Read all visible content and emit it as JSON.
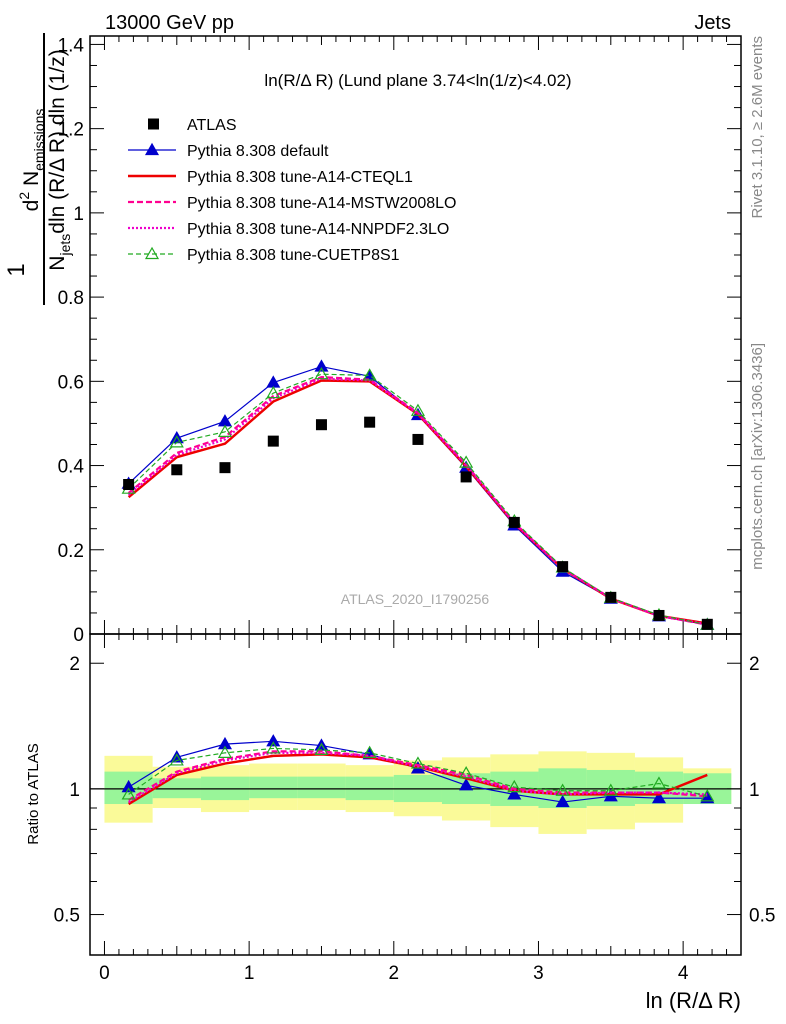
{
  "header": {
    "left": "13000 GeV pp",
    "right": "Jets"
  },
  "side_labels": {
    "rivet": "Rivet 3.1.10, ≥ 2.6M events",
    "mcplots": "mcplots.cern.ch [arXiv:1306.3436]"
  },
  "watermark": "ATLAS_2020_I1790256",
  "colors": {
    "ATLAS": "#000000",
    "default": "#0000cc",
    "CTEQL1": "#ee0000",
    "MSTW": "#ff0090",
    "NNPDF": "#ee00cc",
    "CUETP8S1": "#22aa22",
    "band_inner": "#99f599",
    "band_outer": "#fafa99"
  },
  "chart_data": [
    {
      "type": "scatter",
      "title": "ln(R/Δ R) (Lund plane 3.74<ln(1/z)<4.02)",
      "xlabel": "ln (R/Δ R)",
      "ylabel_parts": {
        "num_a": "d",
        "num_sup": "2",
        "num_b": " N",
        "num_sub": "emissions",
        "one": "1",
        "den_a": "N",
        "den_sub": "jets",
        "den_b": "dln (R/Δ R) dln (1/z)"
      },
      "xlim": [
        -0.1,
        4.4
      ],
      "ylim": [
        0,
        1.42
      ],
      "yticks": [
        0,
        0.2,
        0.4,
        0.6,
        0.8,
        1,
        1.2,
        1.4
      ],
      "ytick_labels": [
        "0",
        "0.2",
        "0.4",
        "0.6",
        "0.8",
        "1",
        "1.2",
        "1.4"
      ],
      "legend_position": "top-left",
      "x": [
        0.167,
        0.5,
        0.833,
        1.167,
        1.5,
        1.833,
        2.167,
        2.5,
        2.833,
        3.167,
        3.5,
        3.833,
        4.167
      ],
      "series": [
        {
          "name": "ATLAS",
          "style": "data",
          "values": [
            0.355,
            0.39,
            0.395,
            0.458,
            0.497,
            0.503,
            0.462,
            0.373,
            0.265,
            0.16,
            0.087,
            0.044,
            0.023
          ]
        },
        {
          "name": "Pythia 8.308 default",
          "style": "blue",
          "values": [
            0.357,
            0.465,
            0.505,
            0.597,
            0.635,
            0.612,
            0.52,
            0.395,
            0.258,
            0.148,
            0.084,
            0.042,
            0.022
          ]
        },
        {
          "name": "Pythia 8.308 tune-A14-CTEQL1",
          "style": "red",
          "values": [
            0.325,
            0.42,
            0.452,
            0.552,
            0.602,
            0.6,
            0.522,
            0.398,
            0.262,
            0.155,
            0.084,
            0.043,
            0.025
          ]
        },
        {
          "name": "Pythia 8.308 tune-A14-MSTW2008LO",
          "style": "magenta",
          "values": [
            0.335,
            0.43,
            0.468,
            0.565,
            0.61,
            0.604,
            0.525,
            0.402,
            0.264,
            0.156,
            0.085,
            0.043,
            0.022
          ]
        },
        {
          "name": "Pythia 8.308 tune-A14-NNPDF2.3LO",
          "style": "pink",
          "values": [
            0.33,
            0.425,
            0.462,
            0.56,
            0.606,
            0.602,
            0.523,
            0.4,
            0.263,
            0.155,
            0.085,
            0.043,
            0.023
          ]
        },
        {
          "name": "Pythia 8.308 tune-CUETP8S1",
          "style": "green",
          "values": [
            0.345,
            0.455,
            0.48,
            0.572,
            0.617,
            0.614,
            0.53,
            0.407,
            0.268,
            0.158,
            0.086,
            0.045,
            0.022
          ]
        }
      ]
    },
    {
      "type": "line",
      "ylabel": "Ratio to ATLAS",
      "xlabel": "ln (R/Δ R)",
      "ylim": [
        0.4,
        2.35
      ],
      "log_y": true,
      "yticks": [
        0.5,
        1,
        2
      ],
      "ytick_labels": [
        "0.5",
        "1",
        "2"
      ],
      "xticks": [
        0,
        1,
        2,
        3,
        4
      ],
      "xtick_labels": [
        "0",
        "1",
        "2",
        "3",
        "4"
      ],
      "bins": [
        [
          0,
          0.333
        ],
        [
          0.333,
          0.667
        ],
        [
          0.667,
          1.0
        ],
        [
          1.0,
          1.333
        ],
        [
          1.333,
          1.667
        ],
        [
          1.667,
          2.0
        ],
        [
          2.0,
          2.333
        ],
        [
          2.333,
          2.667
        ],
        [
          2.667,
          3.0
        ],
        [
          3.0,
          3.333
        ],
        [
          3.333,
          3.667
        ],
        [
          3.667,
          4.0
        ],
        [
          4.0,
          4.333
        ]
      ],
      "band_inner": [
        [
          0.92,
          1.1
        ],
        [
          0.95,
          1.06
        ],
        [
          0.94,
          1.07
        ],
        [
          0.95,
          1.07
        ],
        [
          0.95,
          1.07
        ],
        [
          0.94,
          1.07
        ],
        [
          0.93,
          1.08
        ],
        [
          0.92,
          1.09
        ],
        [
          0.91,
          1.1
        ],
        [
          0.9,
          1.12
        ],
        [
          0.91,
          1.11
        ],
        [
          0.92,
          1.1
        ],
        [
          0.92,
          1.09
        ]
      ],
      "band_outer": [
        [
          0.83,
          1.2
        ],
        [
          0.9,
          1.13
        ],
        [
          0.88,
          1.14
        ],
        [
          0.89,
          1.15
        ],
        [
          0.89,
          1.15
        ],
        [
          0.88,
          1.14
        ],
        [
          0.86,
          1.17
        ],
        [
          0.84,
          1.19
        ],
        [
          0.81,
          1.21
        ],
        [
          0.78,
          1.23
        ],
        [
          0.8,
          1.22
        ],
        [
          0.83,
          1.19
        ],
        [
          0.92,
          1.12
        ]
      ],
      "x": [
        0.167,
        0.5,
        0.833,
        1.167,
        1.5,
        1.833,
        2.167,
        2.5,
        2.833,
        3.167,
        3.5,
        3.833,
        4.167
      ],
      "series": [
        {
          "name": "Pythia 8.308 default",
          "style": "blue",
          "values": [
            1.01,
            1.19,
            1.28,
            1.3,
            1.27,
            1.21,
            1.12,
            1.02,
            0.97,
            0.93,
            0.96,
            0.95,
            0.95
          ]
        },
        {
          "name": "Pythia 8.308 tune-A14-CTEQL1",
          "style": "red",
          "values": [
            0.92,
            1.08,
            1.15,
            1.2,
            1.21,
            1.19,
            1.13,
            1.06,
            0.99,
            0.97,
            0.97,
            0.97,
            1.08
          ]
        },
        {
          "name": "Pythia 8.308 tune-A14-MSTW2008LO",
          "style": "magenta",
          "values": [
            0.94,
            1.1,
            1.18,
            1.23,
            1.23,
            1.2,
            1.14,
            1.08,
            1.0,
            0.98,
            0.98,
            0.98,
            0.96
          ]
        },
        {
          "name": "Pythia 8.308 tune-A14-NNPDF2.3LO",
          "style": "pink",
          "values": [
            0.93,
            1.09,
            1.17,
            1.22,
            1.22,
            1.2,
            1.13,
            1.07,
            0.99,
            0.97,
            0.98,
            0.98,
            0.97
          ]
        },
        {
          "name": "Pythia 8.308 tune-CUETP8S1",
          "style": "green",
          "values": [
            0.97,
            1.17,
            1.22,
            1.25,
            1.24,
            1.22,
            1.15,
            1.09,
            1.01,
            0.99,
            0.99,
            1.03,
            0.96
          ]
        }
      ]
    }
  ]
}
